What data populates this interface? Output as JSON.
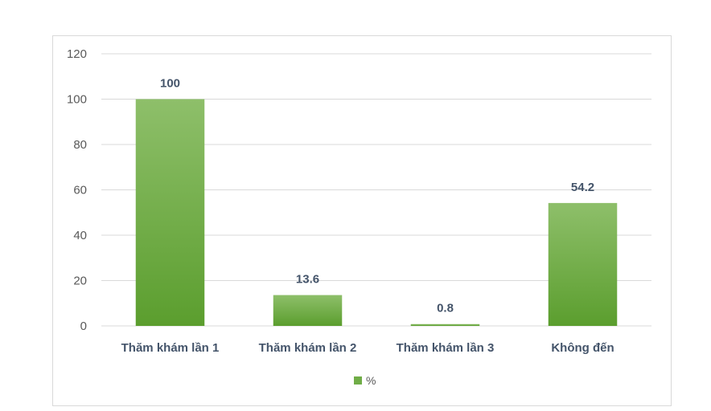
{
  "chart_data": {
    "type": "bar",
    "categories": [
      "Thăm khám lần 1",
      "Thăm khám lần 2",
      "Thăm khám lần 3",
      "Không đến"
    ],
    "series": [
      {
        "name": "%",
        "values": [
          100,
          13.6,
          0.8,
          54.2
        ]
      }
    ],
    "data_labels": [
      "100",
      "13.6",
      "0.8",
      "54.2"
    ],
    "ylim": [
      0,
      120
    ],
    "yticks": [
      0,
      20,
      40,
      60,
      80,
      100,
      120
    ],
    "grid": true,
    "legend": "bottom",
    "colors": {
      "bar_top": "#8ebf6a",
      "bar_bottom": "#5b9e2e",
      "legend": "#70ad47"
    }
  }
}
